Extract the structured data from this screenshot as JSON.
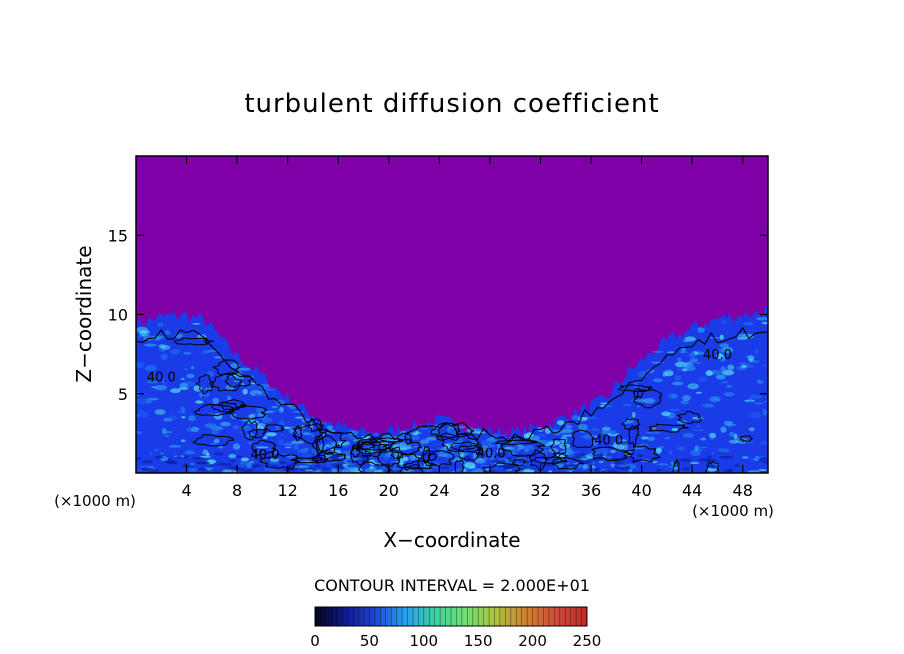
{
  "chart_data": {
    "type": "heatmap",
    "title": "turbulent diffusion coefficient",
    "xlabel": "X−coordinate",
    "ylabel": "Z−coordinate",
    "x_unit_left": "(×1000 m)",
    "x_unit_right": "(×1000 m)",
    "xlim": [
      0,
      50
    ],
    "ylim": [
      0,
      20
    ],
    "x_ticks": [
      4,
      8,
      12,
      16,
      20,
      24,
      28,
      32,
      36,
      40,
      44,
      48
    ],
    "y_ticks": [
      5,
      10,
      15
    ],
    "contour_interval_text": "CONTOUR INTERVAL = 2.000E+01",
    "contour_labels": [
      {
        "text": "40.0",
        "x": 2.0,
        "z": 6.1
      },
      {
        "text": "40.0",
        "x": 10.2,
        "z": 1.2
      },
      {
        "text": "40.0",
        "x": 28.1,
        "z": 1.3
      },
      {
        "text": "40.0",
        "x": 37.4,
        "z": 2.1
      },
      {
        "text": "40.0",
        "x": 46.0,
        "z": 7.5
      }
    ],
    "colorbar": {
      "range": [
        0,
        250
      ],
      "tick_labels": [
        "0",
        "50",
        "100",
        "150",
        "200",
        "250"
      ],
      "colors": [
        "#050520",
        "#101a8a",
        "#1e46d8",
        "#2aa0f0",
        "#3fd0a0",
        "#70e070",
        "#b0c040",
        "#d08030",
        "#d04a3a",
        "#c02828"
      ]
    },
    "background_color": "#7f00a6",
    "low_value_colors": [
      "#1a3ce8",
      "#1e6cf2",
      "#2a9af0",
      "#52d8f0"
    ],
    "turbulent_layer_top_z": [
      9.4,
      9.8,
      10.0,
      9.6,
      7.8,
      6.6,
      5.3,
      4.2,
      3.3,
      2.8,
      2.5,
      2.7,
      3.0,
      3.3,
      3.0,
      2.7,
      2.5,
      2.8,
      3.3,
      4.0,
      4.6,
      6.3,
      7.6,
      8.6,
      9.3,
      9.8,
      10.0,
      10.2
    ]
  }
}
